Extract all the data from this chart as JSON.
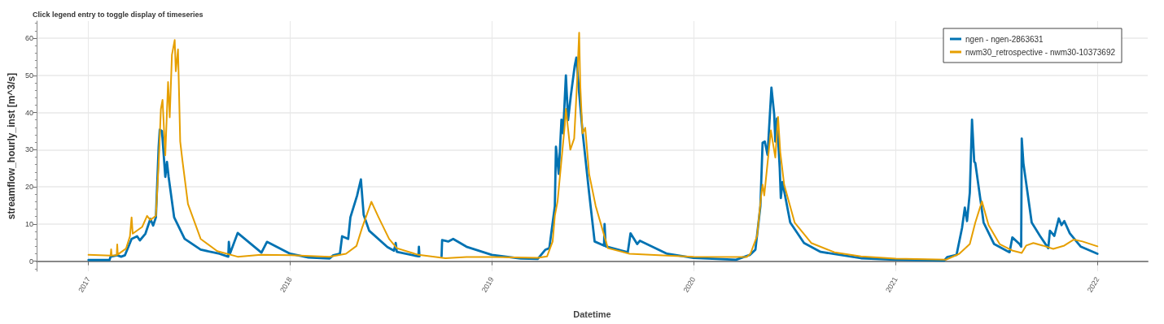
{
  "chart_data": {
    "type": "line",
    "title": "Click legend entry to toggle display of timeseries",
    "xlabel": "Datetime",
    "ylabel": "streamflow_hourly_inst [m^3/s]",
    "xlim": [
      "2016-09-29",
      "2022-04-02"
    ],
    "xticks": [
      "2017",
      "2018",
      "2019",
      "2020",
      "2021",
      "2022"
    ],
    "ylim": [
      -2.7,
      64.6
    ],
    "yticks": [
      0,
      10,
      20,
      30,
      40,
      50,
      60
    ],
    "grid": true,
    "legend": "top right",
    "marker": "none",
    "line_style": "solid",
    "series": [
      {
        "name": "ngen - ngen-2863631",
        "color": "#0072b2",
        "x": [
          "2017-01-01",
          "2017-02-08",
          "2017-02-10",
          "2017-02-22",
          "2017-03-01",
          "2017-03-08",
          "2017-03-20",
          "2017-03-30",
          "2017-04-04",
          "2017-04-14",
          "2017-04-23",
          "2017-04-28",
          "2017-05-03",
          "2017-05-08",
          "2017-05-10",
          "2017-05-14",
          "2017-05-20",
          "2017-05-23",
          "2017-05-26",
          "2017-06-05",
          "2017-06-24",
          "2017-07-23",
          "2017-08-26",
          "2017-09-11",
          "2017-09-12",
          "2017-09-14",
          "2017-09-28",
          "2017-11-10",
          "2017-11-20",
          "2018-01-01",
          "2018-02-03",
          "2018-03-13",
          "2018-03-20",
          "2018-04-01",
          "2018-04-05",
          "2018-04-16",
          "2018-04-20",
          "2018-05-02",
          "2018-05-09",
          "2018-05-14",
          "2018-05-24",
          "2018-06-26",
          "2018-07-08",
          "2018-07-11",
          "2018-07-13",
          "2018-08-21",
          "2018-08-22",
          "2018-08-23",
          "2018-09-15",
          "2018-10-02",
          "2018-10-03",
          "2018-10-14",
          "2018-10-23",
          "2018-11-16",
          "2019-01-01",
          "2019-02-22",
          "2019-03-25",
          "2019-04-08",
          "2019-04-15",
          "2019-04-25",
          "2019-04-27",
          "2019-05-02",
          "2019-05-07",
          "2019-05-10",
          "2019-05-15",
          "2019-05-19",
          "2019-05-24",
          "2019-05-31",
          "2019-06-03",
          "2019-06-08",
          "2019-06-14",
          "2019-06-26",
          "2019-07-06",
          "2019-07-23",
          "2019-07-24",
          "2019-07-26",
          "2019-09-04",
          "2019-09-09",
          "2019-09-21",
          "2019-09-26",
          "2019-11-14",
          "2020-01-01",
          "2020-03-18",
          "2020-04-12",
          "2020-04-22",
          "2020-05-01",
          "2020-05-05",
          "2020-05-09",
          "2020-05-14",
          "2020-05-21",
          "2020-05-26",
          "2020-05-28",
          "2020-05-31",
          "2020-06-05",
          "2020-06-07",
          "2020-06-10",
          "2020-06-24",
          "2020-07-19",
          "2020-08-18",
          "2020-10-30",
          "2021-01-01",
          "2021-03-30",
          "2021-04-04",
          "2021-04-21",
          "2021-05-01",
          "2021-05-06",
          "2021-05-10",
          "2021-05-15",
          "2021-05-19",
          "2021-05-23",
          "2021-05-25",
          "2021-06-09",
          "2021-06-28",
          "2021-07-26",
          "2021-07-31",
          "2021-08-13",
          "2021-08-16",
          "2021-08-17",
          "2021-08-20",
          "2021-09-04",
          "2021-09-19",
          "2021-10-04",
          "2021-10-07",
          "2021-10-15",
          "2021-10-23",
          "2021-10-28",
          "2021-11-02",
          "2021-11-12",
          "2021-12-02",
          "2022-01-01"
        ],
        "values": [
          0.3,
          0.3,
          1.2,
          1.6,
          1.2,
          1.6,
          6.0,
          6.7,
          5.6,
          7.4,
          11.4,
          9.6,
          11.8,
          30.7,
          35.4,
          35,
          22.7,
          26.7,
          22.7,
          11.8,
          6.0,
          3.1,
          2.0,
          1.2,
          5.2,
          2.0,
          7.6,
          2.3,
          5.2,
          2.0,
          1.0,
          0.7,
          1.6,
          2.0,
          6.7,
          6.0,
          11.8,
          17.6,
          22.0,
          12.5,
          8.2,
          3.8,
          2.8,
          4.9,
          2.5,
          1.3,
          3.9,
          1.3,
          null,
          1.3,
          5.7,
          5.3,
          6.0,
          3.9,
          1.7,
          0.7,
          0.6,
          3.1,
          3.5,
          14.8,
          30.8,
          23.5,
          38.1,
          34.4,
          50,
          38,
          44.6,
          52.6,
          54.8,
          45.3,
          35.1,
          18.4,
          5.3,
          4.2,
          10.0,
          4.0,
          2.4,
          7.5,
          4.6,
          5.5,
          2.0,
          0.9,
          0.4,
          1.7,
          3.1,
          14.8,
          31.9,
          32.2,
          28.6,
          46.7,
          39.5,
          32.2,
          38.4,
          25,
          17,
          21.3,
          10.4,
          4.9,
          2.5,
          0.8,
          0.4,
          0.2,
          1.1,
          1.7,
          9.0,
          14.4,
          10.8,
          18.4,
          38.1,
          26.8,
          26.4,
          10.4,
          4.6,
          2.4,
          6.4,
          4.6,
          3.9,
          33,
          26.4,
          10.4,
          6.8,
          3.5,
          8.2,
          6.8,
          11.5,
          9.7,
          10.8,
          7.5,
          3.9,
          2.0
        ]
      },
      {
        "name": "nwm30_retrospective - nwm30-10373692",
        "color": "#e69f00",
        "x": [
          "2017-01-01",
          "2017-02-10",
          "2017-02-11",
          "2017-02-12",
          "2017-02-21",
          "2017-02-22",
          "2017-02-23",
          "2017-03-10",
          "2017-03-17",
          "2017-03-20",
          "2017-03-22",
          "2017-04-08",
          "2017-04-17",
          "2017-04-23",
          "2017-05-03",
          "2017-05-08",
          "2017-05-12",
          "2017-05-15",
          "2017-05-20",
          "2017-05-25",
          "2017-05-28",
          "2017-06-01",
          "2017-06-06",
          "2017-06-08",
          "2017-06-12",
          "2017-06-16",
          "2017-06-20",
          "2017-06-30",
          "2017-07-23",
          "2017-08-22",
          "2017-09-28",
          "2017-11-09",
          "2018-01-01",
          "2018-03-13",
          "2018-04-12",
          "2018-05-01",
          "2018-05-11",
          "2018-05-28",
          "2018-06-10",
          "2018-06-29",
          "2018-07-13",
          "2018-08-21",
          "2018-10-09",
          "2018-11-16",
          "2019-01-01",
          "2019-03-25",
          "2019-04-11",
          "2019-04-21",
          "2019-04-25",
          "2019-04-30",
          "2019-05-13",
          "2019-05-15",
          "2019-05-23",
          "2019-05-30",
          "2019-06-04",
          "2019-06-08",
          "2019-06-10",
          "2019-06-14",
          "2019-06-19",
          "2019-06-26",
          "2019-07-08",
          "2019-07-30",
          "2019-09-07",
          "2019-11-14",
          "2020-01-01",
          "2020-04-06",
          "2020-04-13",
          "2020-04-25",
          "2020-05-03",
          "2020-05-05",
          "2020-05-08",
          "2020-05-20",
          "2020-05-28",
          "2020-06-02",
          "2020-06-06",
          "2020-06-13",
          "2020-07-02",
          "2020-08-01",
          "2020-09-12",
          "2020-10-30",
          "2021-01-01",
          "2021-04-02",
          "2021-04-26",
          "2021-05-15",
          "2021-05-25",
          "2021-06-06",
          "2021-06-18",
          "2021-07-08",
          "2021-08-01",
          "2021-08-17",
          "2021-08-25",
          "2021-09-07",
          "2021-09-24",
          "2021-10-13",
          "2021-11-02",
          "2021-11-19",
          "2021-12-05",
          "2022-01-01"
        ],
        "values": [
          1.7,
          1.5,
          3.2,
          1.5,
          1.6,
          4.5,
          1.8,
          3.4,
          6.7,
          11.8,
          7.4,
          9.2,
          12.2,
          11.1,
          12.2,
          26.3,
          40.9,
          43.4,
          28.5,
          48.2,
          38.7,
          55.5,
          59.5,
          51.1,
          57,
          32.2,
          27.1,
          15.4,
          6.0,
          2.7,
          1.2,
          1.7,
          1.6,
          1.2,
          2.0,
          4.1,
          8.9,
          16.0,
          11.8,
          6.0,
          3.5,
          1.7,
          0.8,
          1.1,
          1.1,
          0.9,
          1.3,
          5.3,
          12.2,
          16.2,
          36.6,
          41,
          30,
          33,
          47.5,
          61.5,
          47.5,
          34.4,
          35.9,
          23.5,
          14.8,
          3.5,
          2.0,
          1.5,
          1.2,
          1.1,
          2.0,
          6.8,
          18.4,
          20.6,
          17.7,
          35.2,
          27.9,
          38.8,
          29.3,
          20.6,
          10.4,
          4.9,
          2.4,
          1.3,
          0.7,
          0.4,
          2.0,
          4.6,
          10.4,
          16.1,
          9.7,
          4.6,
          2.8,
          2.2,
          4.2,
          4.9,
          4.2,
          3.3,
          4.2,
          5.8,
          5.3,
          4.0
        ]
      }
    ]
  }
}
